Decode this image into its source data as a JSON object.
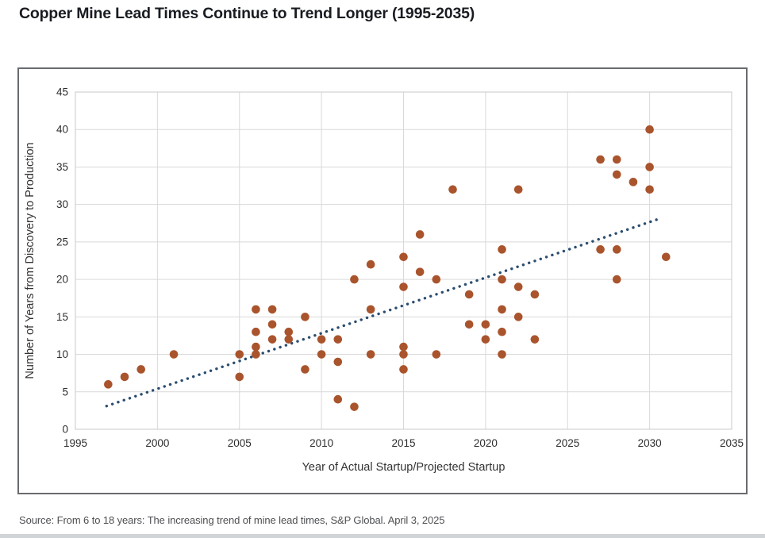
{
  "source": "Source: From 6 to 18 years: The increasing trend of mine lead times, S&P Global. April 3, 2025",
  "colors": {
    "point": "#a9542c",
    "trend": "#2b4d6f",
    "grid": "#d9d9d9",
    "plot_border": "#c9c9c9",
    "box_border": "#686b6f",
    "title_text": "#191c21",
    "tick_text": "#2d2d2d",
    "axis_title_text": "#333333",
    "source_text": "#4d4f52"
  },
  "chart_data": {
    "type": "scatter",
    "title": "Copper Mine Lead Times Continue to Trend Longer (1995-2035)",
    "xlabel": "Year of Actual Startup/Projected Startup",
    "ylabel": "Number of Years from Discovery to Production",
    "xlim": [
      1995,
      2035
    ],
    "ylim": [
      0,
      45
    ],
    "x_ticks": [
      1995,
      2000,
      2005,
      2010,
      2015,
      2020,
      2025,
      2030,
      2035
    ],
    "y_ticks": [
      0,
      5,
      10,
      15,
      20,
      25,
      30,
      35,
      40,
      45
    ],
    "grid": true,
    "legend": "none",
    "points": [
      [
        1997,
        6
      ],
      [
        1998,
        7
      ],
      [
        1999,
        8
      ],
      [
        2001,
        10
      ],
      [
        2005,
        10
      ],
      [
        2005,
        7
      ],
      [
        2006,
        16
      ],
      [
        2006,
        13
      ],
      [
        2006,
        11
      ],
      [
        2006,
        10
      ],
      [
        2007,
        16
      ],
      [
        2007,
        14
      ],
      [
        2007,
        12
      ],
      [
        2008,
        13
      ],
      [
        2008,
        12
      ],
      [
        2009,
        15
      ],
      [
        2009,
        8
      ],
      [
        2010,
        12
      ],
      [
        2010,
        10
      ],
      [
        2011,
        12
      ],
      [
        2011,
        9
      ],
      [
        2011,
        4
      ],
      [
        2012,
        20
      ],
      [
        2012,
        3
      ],
      [
        2013,
        22
      ],
      [
        2013,
        16
      ],
      [
        2013,
        10
      ],
      [
        2015,
        23
      ],
      [
        2015,
        19
      ],
      [
        2015,
        11
      ],
      [
        2015,
        10
      ],
      [
        2015,
        8
      ],
      [
        2016,
        26
      ],
      [
        2016,
        21
      ],
      [
        2017,
        20
      ],
      [
        2017,
        10
      ],
      [
        2018,
        32
      ],
      [
        2019,
        18
      ],
      [
        2019,
        14
      ],
      [
        2020,
        14
      ],
      [
        2020,
        12
      ],
      [
        2021,
        24
      ],
      [
        2021,
        20
      ],
      [
        2021,
        16
      ],
      [
        2021,
        13
      ],
      [
        2021,
        10
      ],
      [
        2022,
        32
      ],
      [
        2022,
        19
      ],
      [
        2022,
        15
      ],
      [
        2023,
        18
      ],
      [
        2023,
        12
      ],
      [
        2027,
        36
      ],
      [
        2027,
        24
      ],
      [
        2028,
        36
      ],
      [
        2028,
        34
      ],
      [
        2028,
        24
      ],
      [
        2028,
        20
      ],
      [
        2029,
        33
      ],
      [
        2030,
        40
      ],
      [
        2030,
        35
      ],
      [
        2030,
        32
      ],
      [
        2031,
        23
      ]
    ],
    "trendline": {
      "style": "dotted",
      "x1": 1996.9,
      "y1": 3.1,
      "x2": 2030.6,
      "y2": 28.1
    }
  }
}
